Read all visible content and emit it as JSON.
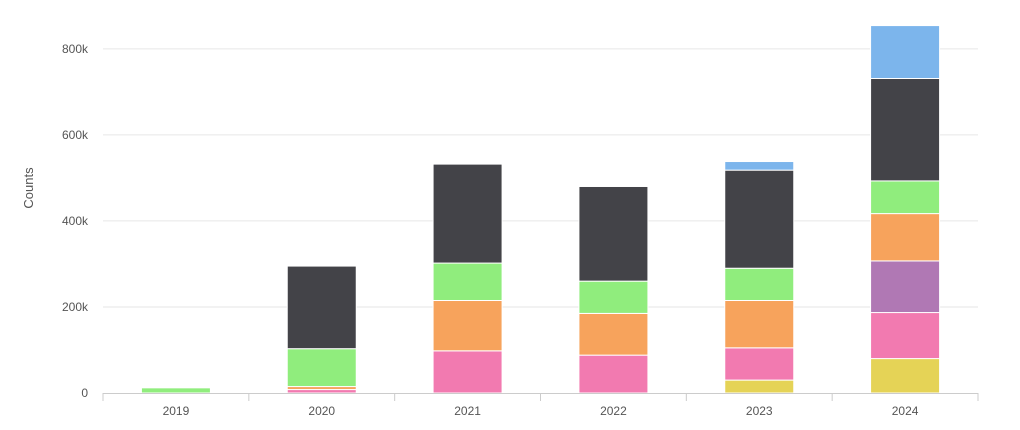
{
  "chart_data": {
    "type": "bar",
    "stacked": true,
    "categories": [
      "2019",
      "2020",
      "2021",
      "2022",
      "2023",
      "2024"
    ],
    "ylabel": "Counts",
    "ylim": [
      0,
      860000
    ],
    "yticks": [
      0,
      200000,
      400000,
      600000,
      800000
    ],
    "ytick_labels": [
      "0",
      "200k",
      "400k",
      "600k",
      "800k"
    ],
    "grid": true,
    "legend": "none",
    "series": [
      {
        "color": "#e5d356",
        "values": [
          0,
          0,
          0,
          0,
          30000,
          80000
        ]
      },
      {
        "color": "#f27ab0",
        "values": [
          0,
          8000,
          98000,
          88000,
          75000,
          107000
        ]
      },
      {
        "color": "#b078b4",
        "values": [
          0,
          0,
          0,
          0,
          0,
          120000
        ]
      },
      {
        "color": "#f7a35c",
        "values": [
          0,
          7000,
          117000,
          97000,
          110000,
          110000
        ]
      },
      {
        "color": "#90ed7d",
        "values": [
          12000,
          88000,
          87000,
          75000,
          75000,
          76000
        ]
      },
      {
        "color": "#434348",
        "values": [
          0,
          192000,
          230000,
          220000,
          228000,
          238000
        ]
      },
      {
        "color": "#7cb5ec",
        "values": [
          0,
          0,
          0,
          0,
          20000,
          123000
        ]
      }
    ]
  }
}
